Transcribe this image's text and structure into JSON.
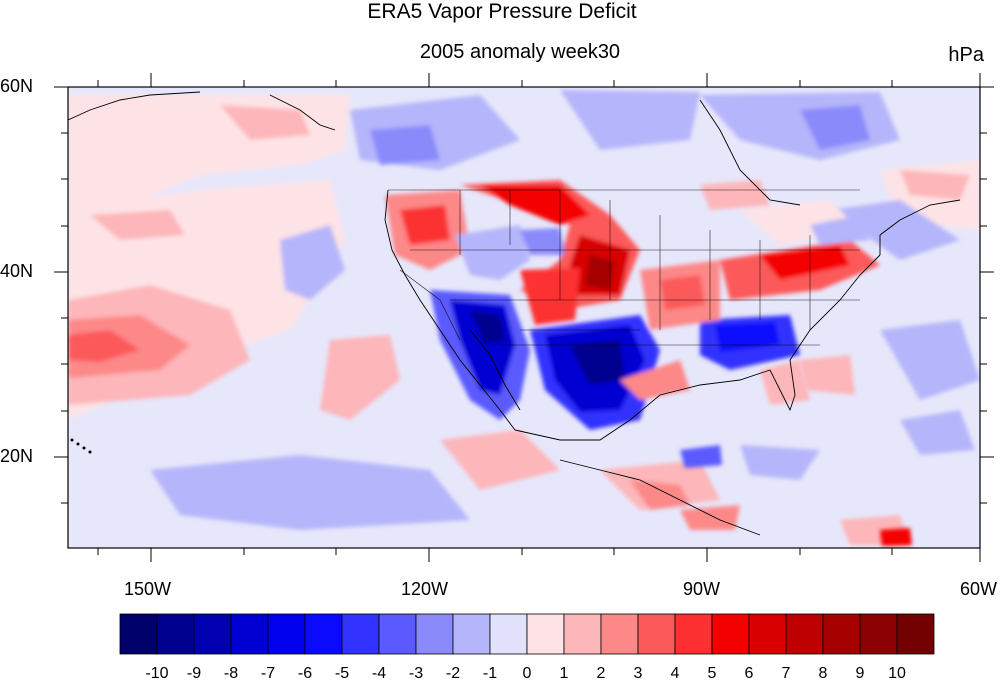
{
  "title": "ERA5 Vapor Pressure Deficit",
  "subtitle": "2005 anomaly week30",
  "units": "hPa",
  "lat_labels": [
    "60N",
    "40N",
    "20N"
  ],
  "lon_labels": [
    "150W",
    "120W",
    "90W",
    "60W"
  ],
  "colorbar": {
    "ticks": [
      "-10",
      "-9",
      "-8",
      "-7",
      "-6",
      "-5",
      "-4",
      "-3",
      "-2",
      "-1",
      "0",
      "1",
      "2",
      "3",
      "4",
      "5",
      "6",
      "7",
      "8",
      "9",
      "10"
    ],
    "colors": [
      "#00006a",
      "#00008f",
      "#0000b0",
      "#0000d2",
      "#0000ee",
      "#0a0aff",
      "#3333ff",
      "#5a5aff",
      "#8a8afb",
      "#b5b5fb",
      "#e2e2fd",
      "#fde3e6",
      "#fdb6b9",
      "#fc8888",
      "#fc5a5a",
      "#fc3030",
      "#f30000",
      "#d80000",
      "#be0000",
      "#a40000",
      "#8b0000",
      "#720000"
    ]
  },
  "colors": {
    "ocean_background": "#e7e7fb",
    "land_background": "#e4e4f9",
    "coastline": "#000000"
  }
}
